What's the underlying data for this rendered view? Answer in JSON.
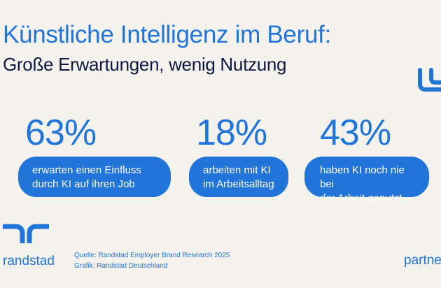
{
  "header": {
    "title": "Künstliche Intelligenz im Beruf:",
    "subtitle": "Große Erwartungen, wenig Nutzung"
  },
  "stats": [
    {
      "value": "63%",
      "line1": "erwarten einen Einfluss",
      "line2": "durch KI auf ihren Job"
    },
    {
      "value": "18%",
      "line1": "arbeiten mit KI",
      "line2": "im Arbeitsalltag"
    },
    {
      "value": "43%",
      "line1": "haben KI noch nie bei",
      "line2": "der Arbeit genutzt"
    }
  ],
  "footer": {
    "brand": "randstad",
    "source_line": "Quelle: Randstad Employer Brand Research 2025",
    "graphic_line": "Grafik: Randstad Deutschland",
    "partner": "partner"
  },
  "colors": {
    "accent": "#2175d9",
    "navy": "#0f1941",
    "background": "#f4f2ed"
  },
  "icons": [
    "chat-bubble-icon",
    "randstad-logo-icon"
  ]
}
